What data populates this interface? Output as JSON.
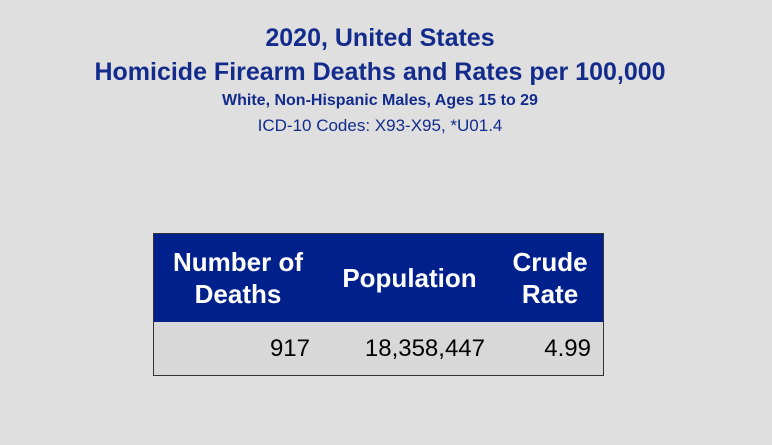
{
  "header": {
    "title": "2020, United States",
    "subtitle": "Homicide Firearm Deaths and Rates per 100,000",
    "population_group": "White, Non-Hispanic Males, Ages 15 to 29",
    "codes": "ICD-10 Codes: X93-X95, *U01.4"
  },
  "table": {
    "columns": [
      "Number of Deaths",
      "Population",
      "Crude Rate"
    ],
    "rows": [
      [
        "917",
        "18,358,447",
        "4.99"
      ]
    ]
  }
}
